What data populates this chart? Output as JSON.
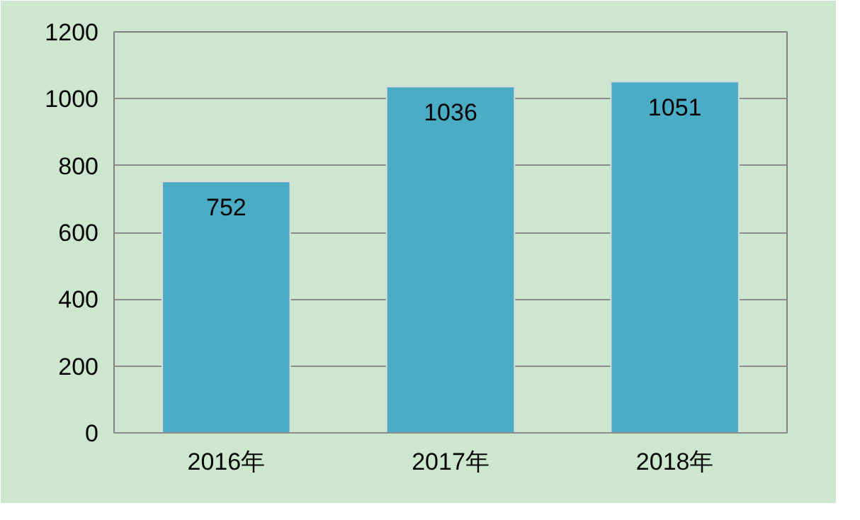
{
  "chart_data": {
    "type": "bar",
    "categories": [
      "2016年",
      "2017年",
      "2018年"
    ],
    "values": [
      752,
      1036,
      1051
    ],
    "color": "#4bacc6",
    "ylim": [
      0,
      1200
    ],
    "yticks": [
      0,
      200,
      400,
      600,
      800,
      1000,
      1200
    ],
    "grid": "y",
    "data_labels": true
  }
}
